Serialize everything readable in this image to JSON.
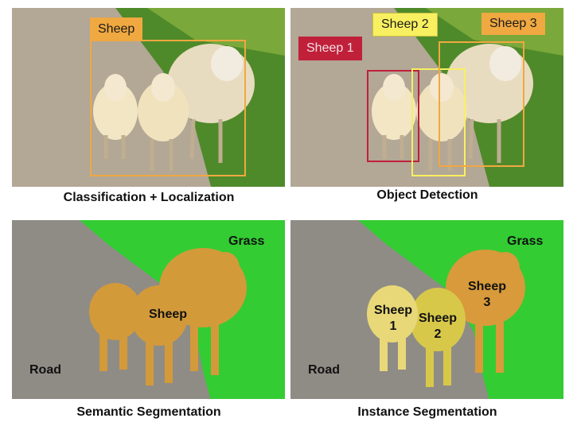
{
  "colors": {
    "road": "#8f8c86",
    "grass": "#33cc33",
    "sheep_semantic": "#d39a3a",
    "sheep1_instance": "#e8d878",
    "sheep2_instance": "#d8c84a",
    "sheep3_instance": "#d89a3a",
    "classification_box": "#f0a840",
    "sheep1_box": "#c0203a",
    "sheep2_box": "#f8f060",
    "sheep3_box": "#f0a840"
  },
  "panels": {
    "classification": {
      "caption": "Classification + Localization",
      "label": "Sheep"
    },
    "detection": {
      "caption": "Object Detection",
      "labels": [
        "Sheep 1",
        "Sheep 2",
        "Sheep 3"
      ]
    },
    "semantic": {
      "caption": "Semantic Segmentation",
      "grass": "Grass",
      "road": "Road",
      "sheep": "Sheep"
    },
    "instance": {
      "caption": "Instance Segmentation",
      "grass": "Grass",
      "road": "Road",
      "sheep1_word": "Sheep",
      "sheep1_num": "1",
      "sheep2_word": "Sheep",
      "sheep2_num": "2",
      "sheep3_word": "Sheep",
      "sheep3_num": "3"
    }
  }
}
